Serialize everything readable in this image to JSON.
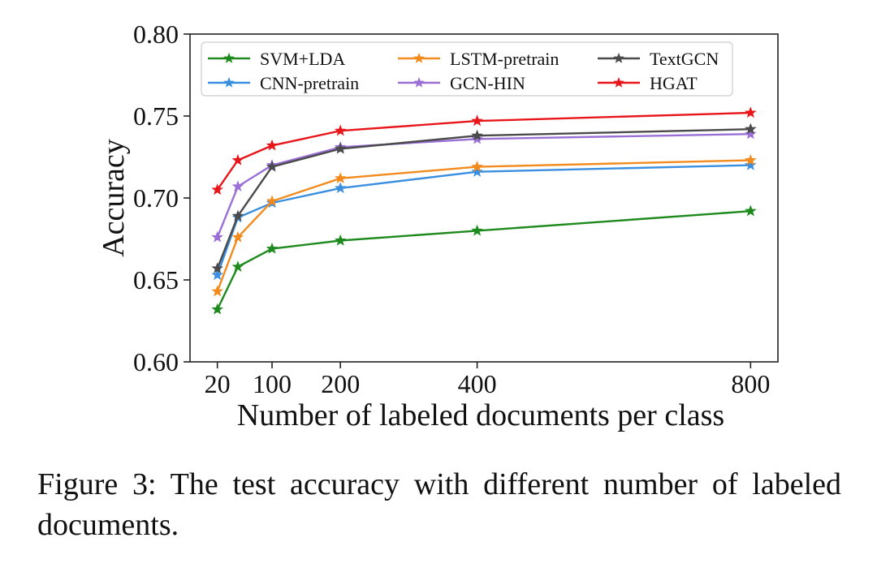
{
  "chart_data": {
    "type": "line",
    "x": [
      20,
      50,
      100,
      200,
      400,
      800
    ],
    "x_tick_labels": [
      "20",
      "100",
      "200",
      "400",
      "800"
    ],
    "x_ticks": [
      20,
      100,
      200,
      400,
      800
    ],
    "xlabel": "Number of labeled documents per class",
    "ylabel": "Accuracy",
    "ylim": [
      0.6,
      0.8
    ],
    "xlim": [
      -20,
      840
    ],
    "y_ticks": [
      0.6,
      0.65,
      0.7,
      0.75,
      0.8
    ],
    "y_tick_labels": [
      "0.60",
      "0.65",
      "0.70",
      "0.75",
      "0.80"
    ],
    "grid": false,
    "legend_position": "top",
    "series": [
      {
        "name": "SVM+LDA",
        "color": "#1e8a1e",
        "values": [
          0.632,
          0.658,
          0.669,
          0.674,
          0.68,
          0.692
        ]
      },
      {
        "name": "CNN-pretrain",
        "color": "#3b8fe0",
        "values": [
          0.653,
          0.688,
          0.697,
          0.706,
          0.716,
          0.72
        ]
      },
      {
        "name": "LSTM-pretrain",
        "color": "#f28a1e",
        "values": [
          0.643,
          0.676,
          0.698,
          0.712,
          0.719,
          0.723
        ]
      },
      {
        "name": "GCN-HIN",
        "color": "#9a6fd6",
        "values": [
          0.676,
          0.707,
          0.72,
          0.731,
          0.736,
          0.739
        ]
      },
      {
        "name": "TextGCN",
        "color": "#4a4a4a",
        "values": [
          0.657,
          0.689,
          0.719,
          0.73,
          0.738,
          0.742
        ]
      },
      {
        "name": "HGAT",
        "color": "#e8161a",
        "values": [
          0.705,
          0.723,
          0.732,
          0.741,
          0.747,
          0.752
        ]
      }
    ],
    "legend_order": [
      "SVM+LDA",
      "LSTM-pretrain",
      "TextGCN",
      "CNN-pretrain",
      "GCN-HIN",
      "HGAT"
    ]
  },
  "caption": {
    "text": "Figure 3: The test accuracy with different number of labeled documents."
  }
}
